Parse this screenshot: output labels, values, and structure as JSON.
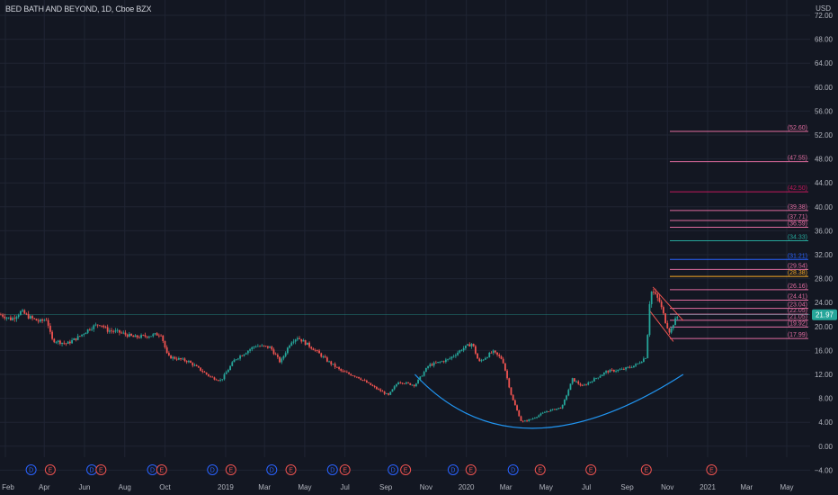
{
  "header": {
    "title": "BED BATH AND BEYOND, 1D, Cboe BZX",
    "currency": "USD"
  },
  "colors": {
    "background": "#131722",
    "grid": "#1f2433",
    "axis_text": "#b2b5be",
    "candle_up": "#26a69a",
    "candle_down": "#ef5350",
    "arc": "#2196f3",
    "price_line": "#26a69a",
    "channel": "#ef5350",
    "current_price_badge": "#26a69a"
  },
  "chart_data": {
    "type": "candlestick",
    "title": "BED BATH AND BEYOND, 1D, Cboe BZX",
    "grid": true,
    "ylim": [
      -4,
      72
    ],
    "y_ticks": [
      "72.00",
      "68.00",
      "64.00",
      "60.00",
      "56.00",
      "52.00",
      "48.00",
      "44.00",
      "40.00",
      "36.00",
      "32.00",
      "28.00",
      "24.00",
      "20.00",
      "16.00",
      "12.00",
      "8.00",
      "4.00",
      "0.00",
      "−4.00"
    ],
    "x_labels": [
      {
        "label": "Feb",
        "date": "2018-02-01"
      },
      {
        "label": "Apr",
        "date": "2018-04-01"
      },
      {
        "label": "Jun",
        "date": "2018-06-01"
      },
      {
        "label": "Aug",
        "date": "2018-08-01"
      },
      {
        "label": "Oct",
        "date": "2018-10-01"
      },
      {
        "label": "2019",
        "date": "2019-01-01"
      },
      {
        "label": "Mar",
        "date": "2019-03-01"
      },
      {
        "label": "May",
        "date": "2019-05-01"
      },
      {
        "label": "Jul",
        "date": "2019-07-01"
      },
      {
        "label": "Sep",
        "date": "2019-09-01"
      },
      {
        "label": "Nov",
        "date": "2019-11-01"
      },
      {
        "label": "2020",
        "date": "2020-01-01"
      },
      {
        "label": "Mar",
        "date": "2020-03-01"
      },
      {
        "label": "May",
        "date": "2020-05-01"
      },
      {
        "label": "Jul",
        "date": "2020-07-01"
      },
      {
        "label": "Sep",
        "date": "2020-09-01"
      },
      {
        "label": "Nov",
        "date": "2020-11-01"
      },
      {
        "label": "2021",
        "date": "2021-01-01"
      },
      {
        "label": "Mar",
        "date": "2021-03-01"
      },
      {
        "label": "May",
        "date": "2021-05-01"
      }
    ],
    "current_price": {
      "label": "21.97",
      "value": 21.97
    },
    "price_path": [
      {
        "date": "2018-01-25",
        "value": 22.0
      },
      {
        "date": "2018-02-10",
        "value": 21.2
      },
      {
        "date": "2018-02-25",
        "value": 22.5
      },
      {
        "date": "2018-03-10",
        "value": 21.5
      },
      {
        "date": "2018-03-25",
        "value": 20.8
      },
      {
        "date": "2018-04-05",
        "value": 21.3
      },
      {
        "date": "2018-04-12",
        "value": 17.8
      },
      {
        "date": "2018-05-05",
        "value": 17.1
      },
      {
        "date": "2018-05-25",
        "value": 18.4
      },
      {
        "date": "2018-06-10",
        "value": 19.8
      },
      {
        "date": "2018-06-25",
        "value": 20.5
      },
      {
        "date": "2018-07-05",
        "value": 19.4
      },
      {
        "date": "2018-07-25",
        "value": 19.0
      },
      {
        "date": "2018-08-15",
        "value": 18.2
      },
      {
        "date": "2018-09-10",
        "value": 18.5
      },
      {
        "date": "2018-09-25",
        "value": 18.8
      },
      {
        "date": "2018-10-05",
        "value": 15.0
      },
      {
        "date": "2018-11-05",
        "value": 14.2
      },
      {
        "date": "2018-12-10",
        "value": 11.5
      },
      {
        "date": "2018-12-25",
        "value": 11.0
      },
      {
        "date": "2019-01-15",
        "value": 14.5
      },
      {
        "date": "2019-02-15",
        "value": 16.8
      },
      {
        "date": "2019-03-10",
        "value": 16.5
      },
      {
        "date": "2019-03-25",
        "value": 14.0
      },
      {
        "date": "2019-04-10",
        "value": 17.5
      },
      {
        "date": "2019-04-20",
        "value": 18.2
      },
      {
        "date": "2019-05-15",
        "value": 16.2
      },
      {
        "date": "2019-06-05",
        "value": 14.2
      },
      {
        "date": "2019-06-26",
        "value": 12.5
      },
      {
        "date": "2019-07-20",
        "value": 11.6
      },
      {
        "date": "2019-08-15",
        "value": 9.8
      },
      {
        "date": "2019-09-05",
        "value": 8.5
      },
      {
        "date": "2019-09-20",
        "value": 10.8
      },
      {
        "date": "2019-10-15",
        "value": 10.2
      },
      {
        "date": "2019-11-05",
        "value": 13.5
      },
      {
        "date": "2019-12-05",
        "value": 14.5
      },
      {
        "date": "2019-12-25",
        "value": 16.2
      },
      {
        "date": "2020-01-10",
        "value": 17.2
      },
      {
        "date": "2020-01-20",
        "value": 14.0
      },
      {
        "date": "2020-02-10",
        "value": 15.8
      },
      {
        "date": "2020-02-25",
        "value": 14.5
      },
      {
        "date": "2020-03-10",
        "value": 8.2
      },
      {
        "date": "2020-03-25",
        "value": 4.0
      },
      {
        "date": "2020-04-10",
        "value": 4.6
      },
      {
        "date": "2020-05-01",
        "value": 5.8
      },
      {
        "date": "2020-05-25",
        "value": 6.5
      },
      {
        "date": "2020-06-10",
        "value": 11.2
      },
      {
        "date": "2020-06-25",
        "value": 10.0
      },
      {
        "date": "2020-07-10",
        "value": 11.0
      },
      {
        "date": "2020-08-01",
        "value": 12.5
      },
      {
        "date": "2020-08-25",
        "value": 12.8
      },
      {
        "date": "2020-09-15",
        "value": 13.6
      },
      {
        "date": "2020-09-30",
        "value": 15.0
      },
      {
        "date": "2020-10-02",
        "value": 18.8
      },
      {
        "date": "2020-10-06",
        "value": 24.0
      },
      {
        "date": "2020-10-10",
        "value": 25.8
      },
      {
        "date": "2020-10-20",
        "value": 24.2
      },
      {
        "date": "2020-10-30",
        "value": 20.5
      },
      {
        "date": "2020-11-05",
        "value": 19.0
      },
      {
        "date": "2020-11-10",
        "value": 20.5
      },
      {
        "date": "2020-11-18",
        "value": 21.97
      }
    ],
    "horizontal_levels": [
      {
        "label": "(52.60)",
        "value": 52.6,
        "color": "#e06c9f"
      },
      {
        "label": "(47.55)",
        "value": 47.55,
        "color": "#e06c9f"
      },
      {
        "label": "(42.50)",
        "value": 42.5,
        "color": "#c2185b"
      },
      {
        "label": "(39.38)",
        "value": 39.38,
        "color": "#e06c9f"
      },
      {
        "label": "(37.71)",
        "value": 37.71,
        "color": "#e06c9f"
      },
      {
        "label": "(36.59)",
        "value": 36.59,
        "color": "#e06c9f"
      },
      {
        "label": "(34.33)",
        "value": 34.33,
        "color": "#26a69a"
      },
      {
        "label": "(31.21)",
        "value": 31.21,
        "color": "#2962ff"
      },
      {
        "label": "(29.54)",
        "value": 29.54,
        "color": "#e06c9f"
      },
      {
        "label": "(28.38)",
        "value": 28.38,
        "color": "#f9a825"
      },
      {
        "label": "(26.16)",
        "value": 26.16,
        "color": "#e06c9f"
      },
      {
        "label": "(24.41)",
        "value": 24.41,
        "color": "#e06c9f"
      },
      {
        "label": "(23.04)",
        "value": 23.04,
        "color": "#e06c9f"
      },
      {
        "label": "(22.05)",
        "value": 22.05,
        "color": "#e06c9f"
      },
      {
        "label": "(21.05)",
        "value": 21.05,
        "color": "#e06c9f"
      },
      {
        "label": "(19.92)",
        "value": 19.92,
        "color": "#e06c9f"
      },
      {
        "label": "(17.99)",
        "value": 17.99,
        "color": "#e06c9f"
      }
    ],
    "events": [
      {
        "label": "D",
        "date": "2018-03-12",
        "kind": "dividend"
      },
      {
        "label": "E",
        "date": "2018-04-10",
        "kind": "earnings"
      },
      {
        "label": "D",
        "date": "2018-06-12",
        "kind": "dividend"
      },
      {
        "label": "E",
        "date": "2018-06-26",
        "kind": "earnings"
      },
      {
        "label": "D",
        "date": "2018-09-12",
        "kind": "dividend"
      },
      {
        "label": "E",
        "date": "2018-09-26",
        "kind": "earnings"
      },
      {
        "label": "D",
        "date": "2018-12-12",
        "kind": "dividend"
      },
      {
        "label": "E",
        "date": "2019-01-09",
        "kind": "earnings"
      },
      {
        "label": "D",
        "date": "2019-03-12",
        "kind": "dividend"
      },
      {
        "label": "E",
        "date": "2019-04-10",
        "kind": "earnings"
      },
      {
        "label": "D",
        "date": "2019-06-12",
        "kind": "dividend"
      },
      {
        "label": "E",
        "date": "2019-07-01",
        "kind": "earnings"
      },
      {
        "label": "D",
        "date": "2019-09-12",
        "kind": "dividend"
      },
      {
        "label": "E",
        "date": "2019-10-01",
        "kind": "earnings"
      },
      {
        "label": "D",
        "date": "2019-12-12",
        "kind": "dividend"
      },
      {
        "label": "E",
        "date": "2020-01-08",
        "kind": "earnings"
      },
      {
        "label": "D",
        "date": "2020-03-12",
        "kind": "dividend"
      },
      {
        "label": "E",
        "date": "2020-04-22",
        "kind": "earnings"
      },
      {
        "label": "E",
        "date": "2020-07-08",
        "kind": "earnings"
      },
      {
        "label": "E",
        "date": "2020-09-30",
        "kind": "earnings"
      },
      {
        "label": "E",
        "date": "2021-01-07",
        "kind": "earnings"
      }
    ],
    "annotations": [
      {
        "kind": "rounding-bottom-arc",
        "from_date": "2019-10-15",
        "from_value": 12.0,
        "bottom_date": "2020-04-10",
        "bottom_value": 3.0,
        "to_date": "2020-11-25",
        "to_value": 12.0,
        "color": "#2196f3"
      },
      {
        "kind": "descending-channel",
        "lines": [
          {
            "x1_date": "2020-10-04",
            "y1_value": 22.8,
            "x2_date": "2020-11-10",
            "y2_value": 17.5
          },
          {
            "x1_date": "2020-10-10",
            "y1_value": 26.6,
            "x2_date": "2020-11-25",
            "y2_value": 21.0
          }
        ],
        "color": "#ef5350"
      }
    ]
  }
}
